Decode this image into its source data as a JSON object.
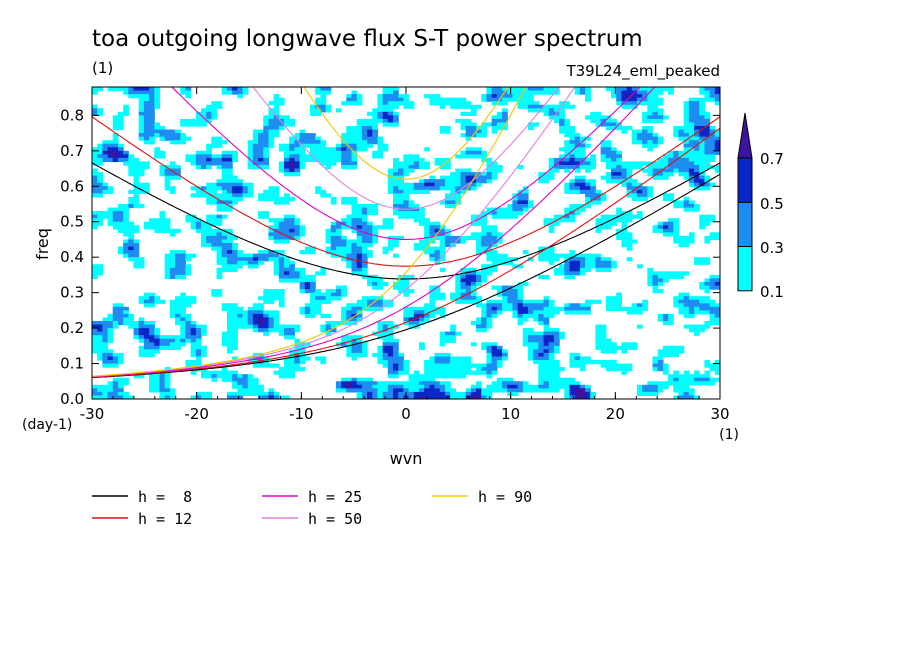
{
  "chart_data": {
    "type": "heatmap",
    "title": "toa outgoing longwave flux S-T power spectrum",
    "subtitle": "T39L24_eml_peaked",
    "units_label": "(1)",
    "xlabel": "wvn",
    "xunits": "(1)",
    "ylabel": "freq",
    "yunits": "(day-1)",
    "xlim": [
      -30,
      30
    ],
    "ylim": [
      0,
      0.88
    ],
    "xticks": [
      "-30",
      "-20",
      "-10",
      "0",
      "10",
      "20",
      "30"
    ],
    "yticks": [
      "0.0",
      "0.1",
      "0.2",
      "0.3",
      "0.4",
      "0.5",
      "0.6",
      "0.7",
      "0.8"
    ],
    "contour_levels": [
      0.1,
      0.3,
      0.5,
      0.7
    ],
    "colorbar_labels": [
      "0.1",
      "0.3",
      "0.5",
      "0.7"
    ],
    "colors": {
      "fill_0_1": "#00ffff",
      "fill_0_3": "#1e8cf0",
      "fill_0_5": "#0a28c8",
      "fill_0_7": "#3c14a0"
    },
    "dispersion_curves": [
      {
        "name": "h =  8",
        "h": 8,
        "color": "#000000"
      },
      {
        "name": "h = 12",
        "h": 12,
        "color": "#e01010"
      },
      {
        "name": "h = 25",
        "h": 25,
        "color": "#e000c0"
      },
      {
        "name": "h = 50",
        "h": 50,
        "color": "#e080e0"
      },
      {
        "name": "h = 90",
        "h": 90,
        "color": "#f0c800"
      }
    ]
  }
}
